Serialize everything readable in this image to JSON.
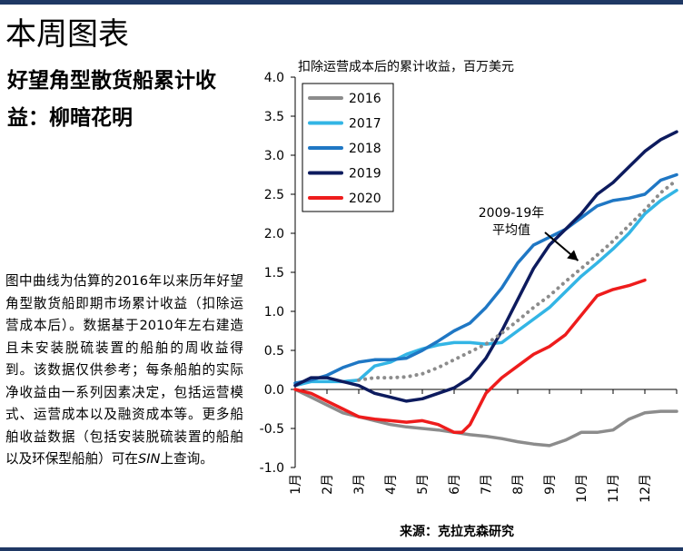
{
  "page": {
    "heading": "本周图表",
    "subtitle": "好望角型散货船累计收益：柳暗花明",
    "description": "图中曲线为估算的2016年以来历年好望角型散货船即期市场累计收益（扣除运营成本后）。数据基于2010年左右建造且未安装脱硫装置的船舶的周收益得到。该数据仅供参考；每条船舶的实际净收益由一系列因素决定，包括运营模式、运营成本以及融资成本等。更多船舶收益数据（包括安装脱硫装置的船舶以及环保型船舶）可在",
    "description_ref": "SIN",
    "description_end": "上查询。",
    "source": "来源：克拉克森研究"
  },
  "chart_data": {
    "type": "line",
    "title": "扣除运营成本后的累计收益，百万美元",
    "x": [
      "1月",
      "2月",
      "3月",
      "4月",
      "5月",
      "6月",
      "7月",
      "8月",
      "9月",
      "10月",
      "11月",
      "12月"
    ],
    "x_range": [
      1,
      13
    ],
    "ylim": [
      -1.0,
      4.0
    ],
    "y_ticks": [
      "4.0",
      "3.5",
      "3.0",
      "2.5",
      "2.0",
      "1.5",
      "1.0",
      "0.5",
      "0.0",
      "-0.5",
      "-1.0"
    ],
    "legend_position": "top-left",
    "series": [
      {
        "name": "2016",
        "color": "#8c8c8c",
        "points": [
          [
            1.0,
            0.0
          ],
          [
            1.5,
            -0.1
          ],
          [
            2.0,
            -0.2
          ],
          [
            2.5,
            -0.3
          ],
          [
            3.0,
            -0.35
          ],
          [
            3.5,
            -0.4
          ],
          [
            4.0,
            -0.45
          ],
          [
            4.5,
            -0.48
          ],
          [
            5.0,
            -0.5
          ],
          [
            5.5,
            -0.52
          ],
          [
            6.0,
            -0.55
          ],
          [
            6.5,
            -0.58
          ],
          [
            7.0,
            -0.6
          ],
          [
            7.5,
            -0.63
          ],
          [
            8.0,
            -0.67
          ],
          [
            8.5,
            -0.7
          ],
          [
            9.0,
            -0.72
          ],
          [
            9.5,
            -0.65
          ],
          [
            10.0,
            -0.55
          ],
          [
            10.5,
            -0.55
          ],
          [
            11.0,
            -0.52
          ],
          [
            11.5,
            -0.38
          ],
          [
            12.0,
            -0.3
          ],
          [
            12.5,
            -0.28
          ],
          [
            13.0,
            -0.28
          ]
        ]
      },
      {
        "name": "2017",
        "color": "#33b5e5",
        "points": [
          [
            1.0,
            0.05
          ],
          [
            1.5,
            0.1
          ],
          [
            2.0,
            0.1
          ],
          [
            2.5,
            0.1
          ],
          [
            3.0,
            0.12
          ],
          [
            3.5,
            0.3
          ],
          [
            4.0,
            0.35
          ],
          [
            4.5,
            0.45
          ],
          [
            5.0,
            0.52
          ],
          [
            5.5,
            0.57
          ],
          [
            6.0,
            0.6
          ],
          [
            6.5,
            0.6
          ],
          [
            7.0,
            0.58
          ],
          [
            7.5,
            0.6
          ],
          [
            8.0,
            0.75
          ],
          [
            8.5,
            0.9
          ],
          [
            9.0,
            1.05
          ],
          [
            9.5,
            1.25
          ],
          [
            10.0,
            1.45
          ],
          [
            10.5,
            1.62
          ],
          [
            11.0,
            1.8
          ],
          [
            11.5,
            2.0
          ],
          [
            12.0,
            2.25
          ],
          [
            12.5,
            2.42
          ],
          [
            13.0,
            2.55
          ]
        ]
      },
      {
        "name": "2018",
        "color": "#1f77c4",
        "points": [
          [
            1.0,
            0.08
          ],
          [
            1.5,
            0.12
          ],
          [
            2.0,
            0.18
          ],
          [
            2.5,
            0.28
          ],
          [
            3.0,
            0.35
          ],
          [
            3.5,
            0.38
          ],
          [
            4.0,
            0.38
          ],
          [
            4.5,
            0.4
          ],
          [
            5.0,
            0.5
          ],
          [
            5.5,
            0.62
          ],
          [
            6.0,
            0.75
          ],
          [
            6.5,
            0.85
          ],
          [
            7.0,
            1.05
          ],
          [
            7.5,
            1.3
          ],
          [
            8.0,
            1.62
          ],
          [
            8.5,
            1.85
          ],
          [
            9.0,
            1.95
          ],
          [
            9.5,
            2.05
          ],
          [
            10.0,
            2.2
          ],
          [
            10.5,
            2.35
          ],
          [
            11.0,
            2.42
          ],
          [
            11.5,
            2.45
          ],
          [
            12.0,
            2.5
          ],
          [
            12.5,
            2.68
          ],
          [
            13.0,
            2.75
          ]
        ]
      },
      {
        "name": "2019",
        "color": "#0d1b5e",
        "points": [
          [
            1.0,
            0.05
          ],
          [
            1.5,
            0.15
          ],
          [
            2.0,
            0.15
          ],
          [
            2.5,
            0.1
          ],
          [
            3.0,
            0.05
          ],
          [
            3.5,
            -0.05
          ],
          [
            4.0,
            -0.1
          ],
          [
            4.5,
            -0.15
          ],
          [
            5.0,
            -0.12
          ],
          [
            5.5,
            -0.05
          ],
          [
            6.0,
            0.02
          ],
          [
            6.5,
            0.15
          ],
          [
            7.0,
            0.4
          ],
          [
            7.5,
            0.75
          ],
          [
            8.0,
            1.15
          ],
          [
            8.5,
            1.55
          ],
          [
            9.0,
            1.85
          ],
          [
            9.5,
            2.05
          ],
          [
            10.0,
            2.25
          ],
          [
            10.5,
            2.5
          ],
          [
            11.0,
            2.65
          ],
          [
            11.5,
            2.85
          ],
          [
            12.0,
            3.05
          ],
          [
            12.5,
            3.2
          ],
          [
            13.0,
            3.3
          ]
        ]
      },
      {
        "name": "2020",
        "color": "#ee1c1c",
        "points": [
          [
            1.0,
            0.0
          ],
          [
            1.5,
            -0.05
          ],
          [
            2.0,
            -0.15
          ],
          [
            2.5,
            -0.25
          ],
          [
            3.0,
            -0.35
          ],
          [
            3.5,
            -0.38
          ],
          [
            4.0,
            -0.4
          ],
          [
            4.5,
            -0.42
          ],
          [
            5.0,
            -0.4
          ],
          [
            5.5,
            -0.45
          ],
          [
            6.0,
            -0.55
          ],
          [
            6.25,
            -0.55
          ],
          [
            6.5,
            -0.45
          ],
          [
            7.0,
            -0.05
          ],
          [
            7.5,
            0.15
          ],
          [
            8.0,
            0.3
          ],
          [
            8.5,
            0.45
          ],
          [
            9.0,
            0.55
          ],
          [
            9.5,
            0.7
          ],
          [
            10.0,
            0.95
          ],
          [
            10.5,
            1.2
          ],
          [
            11.0,
            1.28
          ],
          [
            11.5,
            1.33
          ],
          [
            12.0,
            1.4
          ]
        ]
      },
      {
        "name": "2009-19年平均值",
        "color": "#8c8c8c",
        "dashed": true,
        "points": [
          [
            3.0,
            0.12
          ],
          [
            3.5,
            0.15
          ],
          [
            4.0,
            0.15
          ],
          [
            4.5,
            0.16
          ],
          [
            5.0,
            0.2
          ],
          [
            5.5,
            0.28
          ],
          [
            6.0,
            0.38
          ],
          [
            6.5,
            0.48
          ],
          [
            7.0,
            0.58
          ],
          [
            7.5,
            0.72
          ],
          [
            8.0,
            0.88
          ],
          [
            8.5,
            1.05
          ],
          [
            9.0,
            1.2
          ],
          [
            9.5,
            1.38
          ],
          [
            10.0,
            1.55
          ],
          [
            10.5,
            1.72
          ],
          [
            11.0,
            1.9
          ],
          [
            11.5,
            2.1
          ],
          [
            12.0,
            2.3
          ],
          [
            12.5,
            2.52
          ],
          [
            13.0,
            2.68
          ]
        ]
      }
    ],
    "annotation": {
      "lines": [
        "2009-19年",
        "平均值"
      ],
      "points_to": [
        9.9,
        1.65
      ]
    },
    "grid": false
  }
}
